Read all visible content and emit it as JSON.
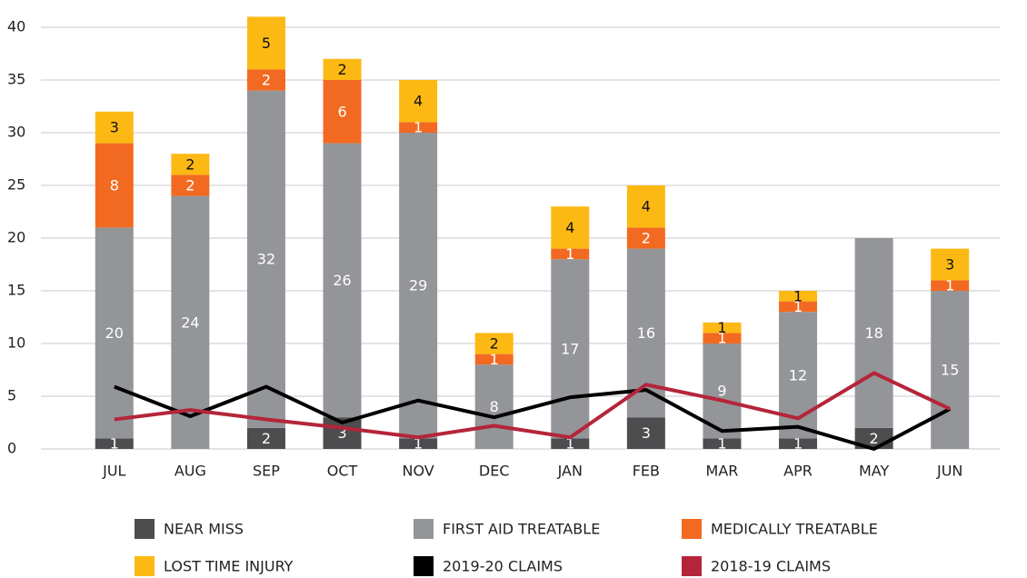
{
  "chart_data": {
    "type": "stacked_bar_line",
    "categories": [
      "JUL",
      "AUG",
      "SEP",
      "OCT",
      "NOV",
      "DEC",
      "JAN",
      "FEB",
      "MAR",
      "APR",
      "MAY",
      "JUN"
    ],
    "series": [
      {
        "name": "NEAR MISS",
        "color": "#4d4d4f",
        "kind": "bar",
        "values": [
          1,
          0,
          2,
          3,
          1,
          0,
          1,
          3,
          1,
          1,
          2,
          0
        ]
      },
      {
        "name": "FIRST AID TREATABLE",
        "color": "#939598",
        "kind": "bar",
        "values": [
          20,
          24,
          32,
          26,
          29,
          8,
          17,
          16,
          9,
          12,
          18,
          15
        ]
      },
      {
        "name": "MEDICALLY TREATABLE",
        "color": "#f26a21",
        "kind": "bar",
        "values": [
          8,
          2,
          2,
          6,
          1,
          1,
          1,
          2,
          1,
          1,
          0,
          1
        ]
      },
      {
        "name": "LOST TIME INJURY",
        "color": "#fdb913",
        "kind": "bar",
        "values": [
          3,
          2,
          5,
          2,
          4,
          2,
          4,
          4,
          1,
          1,
          0,
          3
        ]
      },
      {
        "name": "2019-20 CLAIMS",
        "color": "#000000",
        "kind": "line",
        "values": [
          5.9,
          3.1,
          5.9,
          2.5,
          4.6,
          3.0,
          4.9,
          5.6,
          1.7,
          2.1,
          0,
          3.8
        ]
      },
      {
        "name": "2018-19 CLAIMS",
        "color": "#b5253a",
        "kind": "line",
        "values": [
          2.8,
          3.7,
          2.8,
          2.0,
          1.1,
          2.2,
          1.1,
          6.1,
          4.6,
          2.9,
          7.2,
          3.8
        ]
      }
    ],
    "ylim": [
      0,
      40
    ],
    "yticks": [
      0,
      5,
      10,
      15,
      20,
      25,
      30,
      35,
      40
    ],
    "grid": true
  }
}
